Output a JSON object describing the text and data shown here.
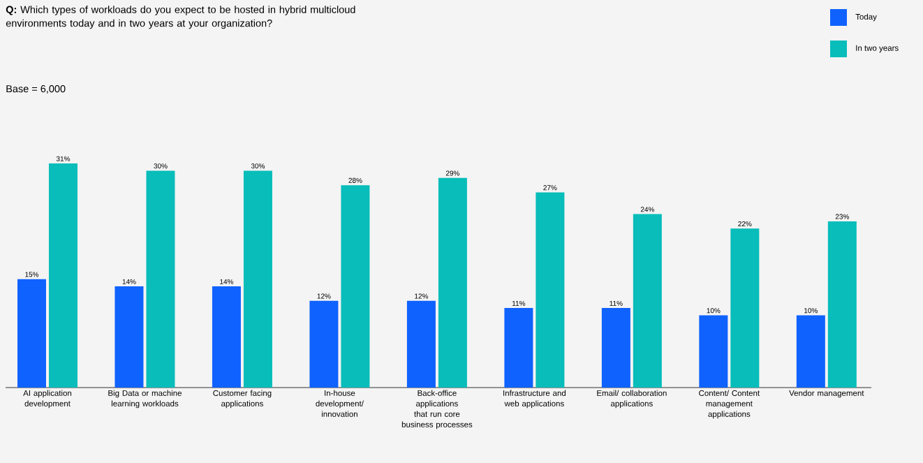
{
  "chart_data": {
    "type": "bar",
    "title": "**Q:** Which types of workloads do you expect to be hosted in hybrid multicloud environments today and in two years at your organization?",
    "subtitle": "Base = 6,000",
    "categories": [
      "AI application development",
      "Big Data or machine learning workloads",
      "Customer facing applications",
      "In-house development/ innovation",
      "Back-office applications that run core business processes",
      "Infrastructure and web applications",
      "Email/ collaboration applications",
      "Content/ Content management applications",
      "Vendor management"
    ],
    "series": [
      {
        "name": "Today",
        "color": "#0f62fe",
        "values": [
          15,
          14,
          14,
          12,
          12,
          11,
          11,
          10,
          10
        ],
        "value_labels": [
          "15%",
          "14%",
          "14%",
          "12%",
          "12%",
          "11%",
          "11%",
          "10%",
          "10%"
        ]
      },
      {
        "name": "In two years",
        "color": "#08bdba",
        "values": [
          31,
          30,
          30,
          28,
          29,
          27,
          24,
          22,
          23
        ],
        "value_labels": [
          "31%",
          "30%",
          "30%",
          "28%",
          "29%",
          "27%",
          "24%",
          "22%",
          "23%"
        ]
      }
    ],
    "legend": "top right"
  }
}
